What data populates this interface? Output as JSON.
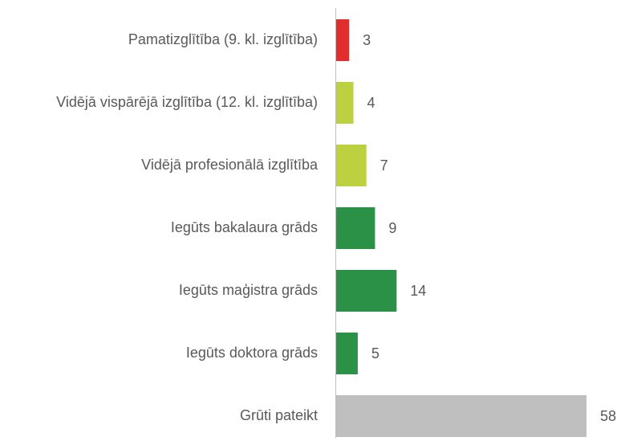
{
  "chart_data": {
    "type": "bar",
    "orientation": "horizontal",
    "categories": [
      "Pamatizglītība (9. kl. izglītība)",
      "Vidējā vispārējā izglītība (12. kl. izglītība)",
      "Vidējā profesionālā izglītība",
      "Iegūts bakalaura grāds",
      "Iegūts maģistra grāds",
      "Iegūts doktora grāds",
      "Grūti pateikt"
    ],
    "values": [
      3,
      4,
      7,
      9,
      14,
      5,
      58
    ],
    "colors": [
      "#e12d2d",
      "#bdd03f",
      "#bdd03f",
      "#2b9147",
      "#2b9147",
      "#2b9147",
      "#bfbfbf"
    ]
  }
}
